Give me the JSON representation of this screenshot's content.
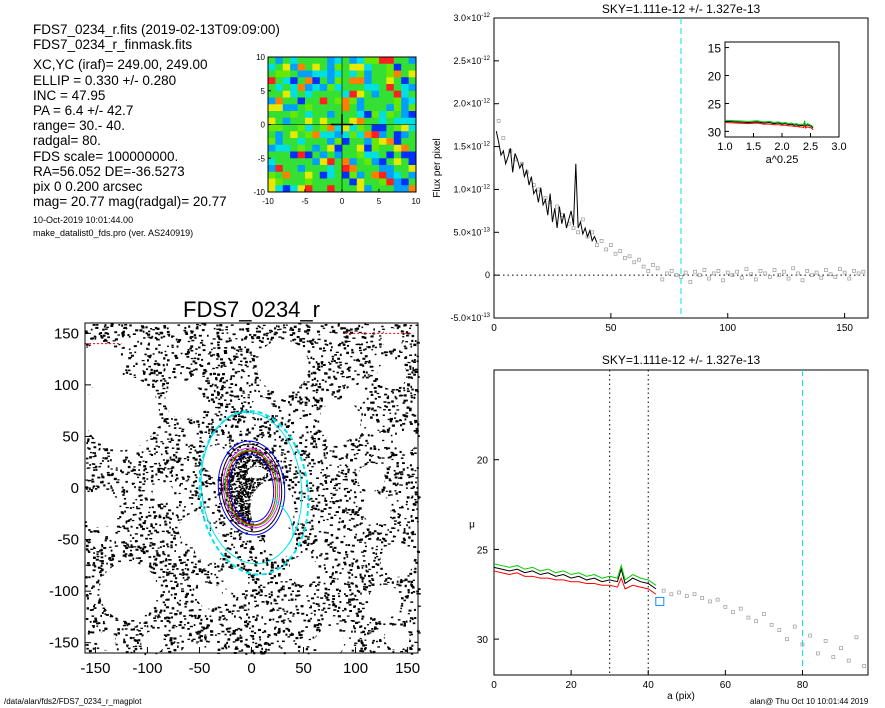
{
  "header": {
    "lines": [
      "FDS7_0234_r.fits  (2019-02-13T09:09:00)",
      "FDS7_0234_r_finmask.fits"
    ],
    "params": [
      "XC,YC (iraf)=   249.00, 249.00",
      "ELLIP = 0.330 +/- 0.280",
      "INC   = 47.95",
      "PA    =   6.4 +/-  42.7",
      "range=   30.-   40.",
      "radgal=   80.",
      "FDS scale=  100000000.",
      "RA=56.052   DE=-36.5273",
      "pix 0 0.200 arcsec",
      "mag=  20.77  mag(radgal)=  20.77"
    ],
    "date_line": "10-Oct-2019 10:01:44.00",
    "program_line": "make_datalist0_fds.pro (ver. AS240919)"
  },
  "footer": {
    "path": "/data/alan/fds2/FDS7_0234_r_magplot",
    "user_time": "alan@  Thu Oct 10 10:01:44 2019"
  },
  "colors": {
    "axis": "#000000",
    "profile_black": "#000000",
    "profile_red": "#ff0000",
    "profile_green": "#00cc00",
    "sky_marker": "#00e5ee",
    "aperture_blue": "#0000ff",
    "aperture_magenta": "#ff00ff",
    "points_grey": "#999999"
  },
  "chart_data": [
    {
      "type": "heatmap",
      "title": "",
      "xlim": [
        -10,
        10
      ],
      "ylim": [
        -10,
        10
      ],
      "x_ticks": [
        "-10",
        "-5",
        "0",
        "5",
        "10"
      ],
      "y_ticks": [
        "10",
        "5",
        "0",
        "-5",
        "-10"
      ],
      "colormap": "rainbow (blue-cyan-green-yellow-red)",
      "crosshair": [
        0,
        0
      ],
      "background_value_color": "green"
    },
    {
      "type": "scatter",
      "title": "FDS7_0234_r",
      "xlim": [
        -160,
        160
      ],
      "ylim": [
        -160,
        160
      ],
      "x_ticks": [
        "-150",
        "-100",
        "-50",
        "0",
        "50",
        "100",
        "150"
      ],
      "y_ticks": [
        "150",
        "100",
        "50",
        "0",
        "-50",
        "-100",
        "-150"
      ],
      "ellipses": [
        {
          "label": "radgal",
          "a": 80,
          "ellip": 0.33,
          "pa": 6.4,
          "color": "cyan",
          "style": "dashed"
        },
        {
          "label": "range inner",
          "a": 30,
          "ellip": 0.33,
          "pa": 6.4,
          "color": "multi"
        },
        {
          "label": "range outer",
          "a": 40,
          "ellip": 0.33,
          "pa": 6.4,
          "color": "multi"
        }
      ]
    },
    {
      "type": "line",
      "title": "SKY=1.111e-12 +/- 1.327e-13",
      "xlabel": "",
      "ylabel": "Flux per pixel",
      "xlim": [
        0,
        160
      ],
      "ylim": [
        -5e-13,
        3e-12
      ],
      "x_ticks": [
        "0",
        "50",
        "100",
        "150"
      ],
      "y_ticks": [
        {
          "mant": "-5.0",
          "exp": "-13",
          "v": -5e-13
        },
        {
          "mant": "0",
          "exp": "",
          "v": 0
        },
        {
          "mant": "5.0",
          "exp": "-13",
          "v": 5e-13
        },
        {
          "mant": "1.0",
          "exp": "-12",
          "v": 1e-12
        },
        {
          "mant": "1.5",
          "exp": "-12",
          "v": 1.5e-12
        },
        {
          "mant": "2.0",
          "exp": "-12",
          "v": 2e-12
        },
        {
          "mant": "2.5",
          "exp": "-12",
          "v": 2.5e-12
        },
        {
          "mant": "3.0",
          "exp": "-12",
          "v": 3e-12
        }
      ],
      "sky_line_x": 80,
      "zero_line": true,
      "series": [
        {
          "color": "black",
          "x": [
            1,
            2,
            3,
            4,
            5,
            6,
            7,
            8,
            9,
            10,
            11,
            12,
            13,
            14,
            15,
            16,
            17,
            18,
            19,
            20,
            21,
            22,
            23,
            24,
            25,
            26,
            27,
            28,
            29,
            30,
            31,
            32,
            33,
            34,
            35,
            36,
            37,
            38,
            39,
            40,
            41,
            42,
            43,
            44
          ],
          "y": [
            1.68e-12,
            1.55e-12,
            1.4e-12,
            1.45e-12,
            1.3e-12,
            1.38e-12,
            1.48e-12,
            1.2e-12,
            1.42e-12,
            1.35e-12,
            1.25e-12,
            1.3e-12,
            1.15e-12,
            1.22e-12,
            1.05e-12,
            1.15e-12,
            9.5e-13,
            1e-12,
            8.5e-13,
            1.02e-12,
            8.2e-13,
            8.8e-13,
            7e-13,
            9.5e-13,
            6.2e-13,
            7.8e-13,
            5.5e-13,
            8e-13,
            6e-13,
            7.2e-13,
            5.5e-13,
            6.5e-13,
            7.5e-13,
            5.8e-13,
            1.3e-12,
            5.5e-13,
            6.2e-13,
            4.8e-13,
            5.5e-13,
            4.5e-13,
            5.2e-13,
            4e-13,
            4.5e-13,
            3.8e-13
          ]
        }
      ],
      "points": {
        "x": [
          2,
          4,
          7,
          9,
          12,
          14,
          17,
          19,
          22,
          24,
          27,
          29,
          32,
          34,
          36,
          38,
          40,
          42,
          44,
          46,
          48,
          50,
          52,
          54,
          56,
          58,
          60,
          62,
          64,
          66,
          68,
          70,
          72,
          74,
          76,
          78,
          80,
          82,
          84,
          86,
          88,
          90,
          92,
          94,
          96,
          98,
          100,
          102,
          104,
          106,
          108,
          110,
          112,
          114,
          116,
          118,
          120,
          122,
          124,
          126,
          128,
          130,
          132,
          134,
          136,
          138,
          140,
          142,
          144,
          146,
          148,
          150,
          152,
          154,
          156,
          158
        ],
        "y": [
          1.8e-12,
          1.6e-12,
          1.45e-12,
          1.35e-12,
          1.3e-12,
          1.2e-12,
          1.05e-12,
          1e-12,
          9e-13,
          8.5e-13,
          8e-13,
          7e-13,
          6e-13,
          5.5e-13,
          5e-13,
          6.5e-13,
          4.5e-13,
          5e-13,
          3.5e-13,
          4e-13,
          3e-13,
          3.5e-13,
          2.5e-13,
          2.8e-13,
          2e-13,
          2.2e-13,
          1.5e-13,
          1.8e-13,
          1e-13,
          5e-14,
          1.2e-13,
          8e-14,
          -5e-14,
          2e-14,
          5e-14,
          0.0,
          -2e-14,
          3e-14,
          -8e-14,
          4e-14,
          0.0,
          6e-14,
          -4e-14,
          2e-14,
          5e-14,
          -6e-14,
          3e-14,
          0.0,
          4e-14,
          -3e-14,
          7e-14,
          1e-14,
          -5e-14,
          5e-14,
          2e-14,
          -2e-14,
          6e-14,
          0.0,
          4e-14,
          -4e-14,
          8e-14,
          2e-14,
          -6e-14,
          5e-14,
          0.0,
          3e-14,
          -3e-14,
          6e-14,
          1e-14,
          -2e-14,
          7e-14,
          3e-14,
          -4e-14,
          5e-14,
          2e-14,
          4e-14
        ]
      },
      "inset": {
        "xlim": [
          1.0,
          3.0
        ],
        "ylim": [
          31,
          14
        ],
        "xlabel": "a^0.25",
        "x_ticks": [
          "1.0",
          "1.5",
          "2.0",
          "2.5",
          "3.0"
        ],
        "y_ticks": [
          "15",
          "20",
          "25",
          "30"
        ]
      }
    },
    {
      "type": "line",
      "title": "SKY=1.111e-12 +/- 1.327e-13",
      "xlabel": "a (pix)",
      "ylabel": "μ",
      "xlim": [
        0,
        97
      ],
      "ylim": [
        32,
        15
      ],
      "x_ticks": [
        "0",
        "20",
        "40",
        "60",
        "80"
      ],
      "y_ticks": [
        "20",
        "25",
        "30"
      ],
      "vlines_dotted": [
        30,
        40
      ],
      "sky_line_x": 80,
      "series": [
        {
          "color": "black",
          "x": [
            0,
            2,
            4,
            6,
            8,
            10,
            12,
            14,
            16,
            18,
            20,
            22,
            24,
            26,
            28,
            30,
            32,
            33,
            34,
            36,
            38,
            40,
            42
          ],
          "y": [
            26.0,
            26.1,
            26.2,
            26.1,
            26.3,
            26.2,
            26.4,
            26.3,
            26.5,
            26.4,
            26.6,
            26.5,
            26.7,
            26.6,
            26.8,
            26.7,
            26.8,
            26.1,
            26.9,
            26.6,
            26.8,
            26.9,
            27.2
          ]
        },
        {
          "color": "red",
          "x": [
            0,
            2,
            4,
            6,
            8,
            10,
            12,
            14,
            16,
            18,
            20,
            22,
            24,
            26,
            28,
            30,
            32,
            33,
            34,
            36,
            38,
            40,
            42
          ],
          "y": [
            26.2,
            26.3,
            26.4,
            26.3,
            26.5,
            26.5,
            26.6,
            26.6,
            26.7,
            26.7,
            26.8,
            26.8,
            26.9,
            26.9,
            27.0,
            27.0,
            27.1,
            26.6,
            27.2,
            27.0,
            27.1,
            27.2,
            27.5
          ]
        },
        {
          "color": "green",
          "x": [
            0,
            2,
            4,
            6,
            8,
            10,
            12,
            14,
            16,
            18,
            20,
            22,
            24,
            26,
            28,
            30,
            32,
            33,
            34,
            36,
            38,
            40,
            42
          ],
          "y": [
            25.8,
            25.9,
            26.0,
            25.9,
            26.1,
            26.0,
            26.2,
            26.1,
            26.3,
            26.2,
            26.4,
            26.3,
            26.5,
            26.4,
            26.6,
            26.5,
            26.6,
            25.9,
            26.7,
            26.4,
            26.6,
            26.7,
            27.0
          ]
        }
      ],
      "points": {
        "x": [
          44,
          46,
          48,
          50,
          52,
          54,
          56,
          58,
          60,
          62,
          64,
          66,
          68,
          70,
          72,
          74,
          76,
          78,
          80,
          82,
          84,
          86,
          88,
          90,
          92,
          94,
          96
        ],
        "y": [
          27.3,
          27.5,
          27.4,
          27.6,
          27.5,
          27.7,
          27.9,
          27.8,
          28.2,
          28.5,
          28.3,
          28.8,
          29.0,
          28.6,
          29.2,
          29.5,
          30.0,
          29.3,
          30.3,
          29.8,
          30.8,
          30.1,
          31.0,
          30.5,
          31.2,
          29.9,
          31.5
        ]
      },
      "marker_box": {
        "x": 43,
        "y": 27.9
      }
    }
  ]
}
